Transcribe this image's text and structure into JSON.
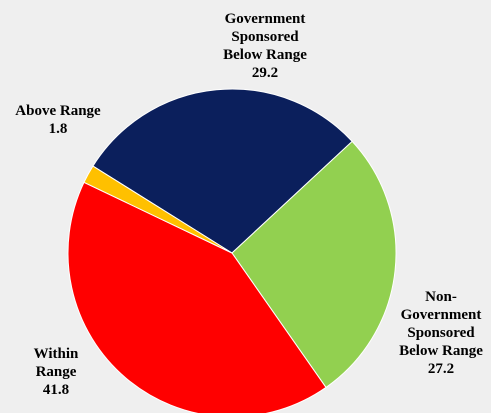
{
  "chart_data": {
    "type": "pie",
    "title": "",
    "start_angle_deg": 0,
    "slices": [
      {
        "label": [
          "Government",
          "Sponsored",
          "Below Range"
        ],
        "value": 29.2,
        "color": "#0b1f5c"
      },
      {
        "label": [
          "Non-",
          "Government",
          "Sponsored",
          "Below Range"
        ],
        "value": 27.2,
        "color": "#92d050"
      },
      {
        "label": [
          "Within",
          "Range"
        ],
        "value": 41.8,
        "color": "#ff0000"
      },
      {
        "label": [
          "Above Range"
        ],
        "value": 1.8,
        "color": "#ffc000"
      }
    ]
  }
}
